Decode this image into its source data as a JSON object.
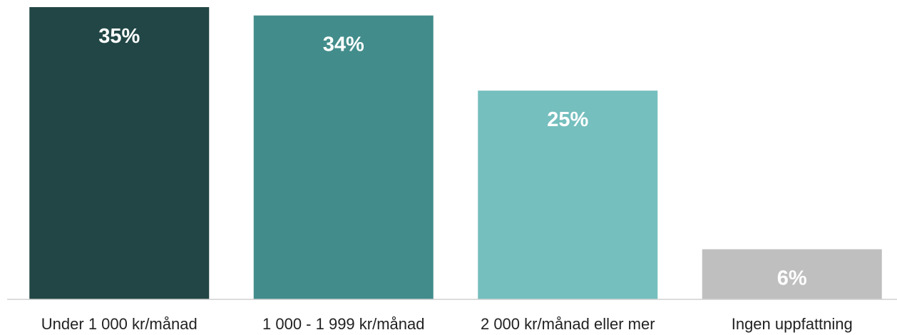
{
  "chart_data": {
    "type": "bar",
    "categories": [
      "Under 1 000 kr/månad",
      "1 000 - 1 999 kr/månad",
      "2 000 kr/månad eller mer",
      "Ingen uppfattning"
    ],
    "values": [
      35,
      34,
      25,
      6
    ],
    "value_labels": [
      "35%",
      "34%",
      "25%",
      "6%"
    ],
    "colors": [
      "#214645",
      "#428d8b",
      "#75bfbe",
      "#bfbfbf"
    ],
    "title": "",
    "xlabel": "",
    "ylabel": "",
    "ylim": [
      0,
      35
    ],
    "grid": false,
    "legend": "none"
  }
}
